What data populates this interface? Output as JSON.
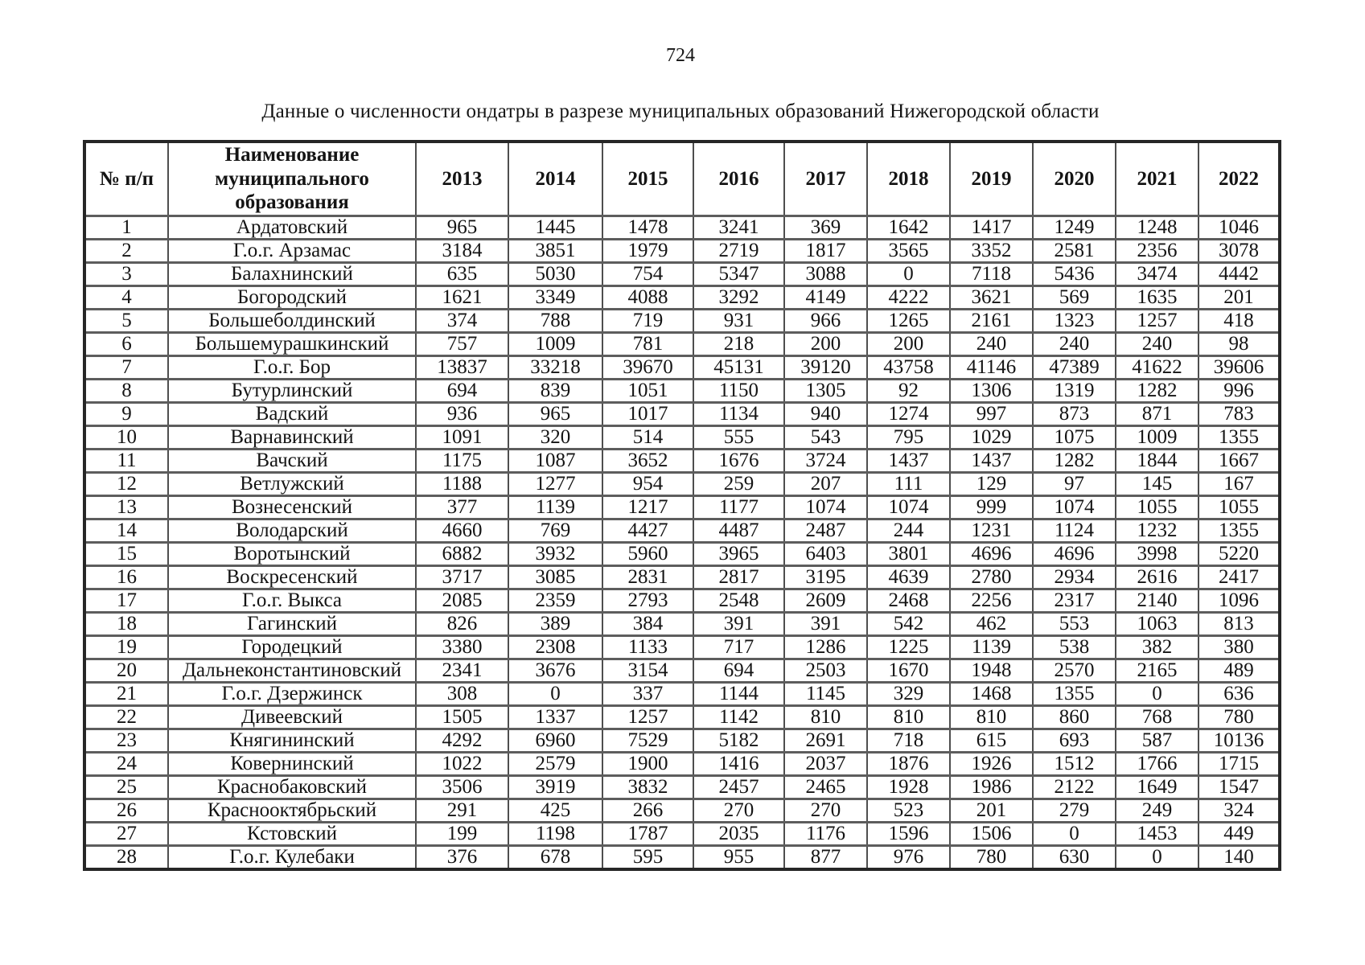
{
  "page": {
    "number": "724",
    "title": "Данные о численности ондатры в разрезе муниципальных образований Нижегородской области"
  },
  "table": {
    "headers": {
      "num_label": "№ п/п",
      "name_label": "Наименование муниципального образования",
      "years": [
        "2013",
        "2014",
        "2015",
        "2016",
        "2017",
        "2018",
        "2019",
        "2020",
        "2021",
        "2022"
      ]
    },
    "rows": [
      {
        "num": "1",
        "name": "Ардатовский",
        "values": [
          "965",
          "1445",
          "1478",
          "3241",
          "369",
          "1642",
          "1417",
          "1249",
          "1248",
          "1046"
        ]
      },
      {
        "num": "2",
        "name": "Г.о.г. Арзамас",
        "values": [
          "3184",
          "3851",
          "1979",
          "2719",
          "1817",
          "3565",
          "3352",
          "2581",
          "2356",
          "3078"
        ]
      },
      {
        "num": "3",
        "name": "Балахнинский",
        "values": [
          "635",
          "5030",
          "754",
          "5347",
          "3088",
          "0",
          "7118",
          "5436",
          "3474",
          "4442"
        ]
      },
      {
        "num": "4",
        "name": "Богородский",
        "values": [
          "1621",
          "3349",
          "4088",
          "3292",
          "4149",
          "4222",
          "3621",
          "569",
          "1635",
          "201"
        ]
      },
      {
        "num": "5",
        "name": "Большеболдинский",
        "values": [
          "374",
          "788",
          "719",
          "931",
          "966",
          "1265",
          "2161",
          "1323",
          "1257",
          "418"
        ]
      },
      {
        "num": "6",
        "name": "Большемурашкинский",
        "values": [
          "757",
          "1009",
          "781",
          "218",
          "200",
          "200",
          "240",
          "240",
          "240",
          "98"
        ]
      },
      {
        "num": "7",
        "name": "Г.о.г. Бор",
        "values": [
          "13837",
          "33218",
          "39670",
          "45131",
          "39120",
          "43758",
          "41146",
          "47389",
          "41622",
          "39606"
        ]
      },
      {
        "num": "8",
        "name": "Бутурлинский",
        "values": [
          "694",
          "839",
          "1051",
          "1150",
          "1305",
          "92",
          "1306",
          "1319",
          "1282",
          "996"
        ]
      },
      {
        "num": "9",
        "name": "Вадский",
        "values": [
          "936",
          "965",
          "1017",
          "1134",
          "940",
          "1274",
          "997",
          "873",
          "871",
          "783"
        ]
      },
      {
        "num": "10",
        "name": "Варнавинский",
        "values": [
          "1091",
          "320",
          "514",
          "555",
          "543",
          "795",
          "1029",
          "1075",
          "1009",
          "1355"
        ]
      },
      {
        "num": "11",
        "name": "Вачский",
        "values": [
          "1175",
          "1087",
          "3652",
          "1676",
          "3724",
          "1437",
          "1437",
          "1282",
          "1844",
          "1667"
        ]
      },
      {
        "num": "12",
        "name": "Ветлужский",
        "values": [
          "1188",
          "1277",
          "954",
          "259",
          "207",
          "111",
          "129",
          "97",
          "145",
          "167"
        ]
      },
      {
        "num": "13",
        "name": "Вознесенский",
        "values": [
          "377",
          "1139",
          "1217",
          "1177",
          "1074",
          "1074",
          "999",
          "1074",
          "1055",
          "1055"
        ]
      },
      {
        "num": "14",
        "name": "Володарский",
        "values": [
          "4660",
          "769",
          "4427",
          "4487",
          "2487",
          "244",
          "1231",
          "1124",
          "1232",
          "1355"
        ]
      },
      {
        "num": "15",
        "name": "Воротынский",
        "values": [
          "6882",
          "3932",
          "5960",
          "3965",
          "6403",
          "3801",
          "4696",
          "4696",
          "3998",
          "5220"
        ]
      },
      {
        "num": "16",
        "name": "Воскресенский",
        "values": [
          "3717",
          "3085",
          "2831",
          "2817",
          "3195",
          "4639",
          "2780",
          "2934",
          "2616",
          "2417"
        ]
      },
      {
        "num": "17",
        "name": "Г.о.г. Выкса",
        "values": [
          "2085",
          "2359",
          "2793",
          "2548",
          "2609",
          "2468",
          "2256",
          "2317",
          "2140",
          "1096"
        ]
      },
      {
        "num": "18",
        "name": "Гагинский",
        "values": [
          "826",
          "389",
          "384",
          "391",
          "391",
          "542",
          "462",
          "553",
          "1063",
          "813"
        ]
      },
      {
        "num": "19",
        "name": "Городецкий",
        "values": [
          "3380",
          "2308",
          "1133",
          "717",
          "1286",
          "1225",
          "1139",
          "538",
          "382",
          "380"
        ]
      },
      {
        "num": "20",
        "name": "Дальнеконстантиновский",
        "values": [
          "2341",
          "3676",
          "3154",
          "694",
          "2503",
          "1670",
          "1948",
          "2570",
          "2165",
          "489"
        ]
      },
      {
        "num": "21",
        "name": "Г.о.г. Дзержинск",
        "values": [
          "308",
          "0",
          "337",
          "1144",
          "1145",
          "329",
          "1468",
          "1355",
          "0",
          "636"
        ]
      },
      {
        "num": "22",
        "name": "Дивеевский",
        "values": [
          "1505",
          "1337",
          "1257",
          "1142",
          "810",
          "810",
          "810",
          "860",
          "768",
          "780"
        ]
      },
      {
        "num": "23",
        "name": "Княгининский",
        "values": [
          "4292",
          "6960",
          "7529",
          "5182",
          "2691",
          "718",
          "615",
          "693",
          "587",
          "10136"
        ]
      },
      {
        "num": "24",
        "name": "Ковернинский",
        "values": [
          "1022",
          "2579",
          "1900",
          "1416",
          "2037",
          "1876",
          "1926",
          "1512",
          "1766",
          "1715"
        ]
      },
      {
        "num": "25",
        "name": "Краснобаковский",
        "values": [
          "3506",
          "3919",
          "3832",
          "2457",
          "2465",
          "1928",
          "1986",
          "2122",
          "1649",
          "1547"
        ]
      },
      {
        "num": "26",
        "name": "Краснооктябрьский",
        "values": [
          "291",
          "425",
          "266",
          "270",
          "270",
          "523",
          "201",
          "279",
          "249",
          "324"
        ]
      },
      {
        "num": "27",
        "name": "Кстовский",
        "values": [
          "199",
          "1198",
          "1787",
          "2035",
          "1176",
          "1596",
          "1506",
          "0",
          "1453",
          "449"
        ]
      },
      {
        "num": "28",
        "name": "Г.о.г. Кулебаки",
        "values": [
          "376",
          "678",
          "595",
          "955",
          "877",
          "976",
          "780",
          "630",
          "0",
          "140"
        ]
      }
    ]
  }
}
